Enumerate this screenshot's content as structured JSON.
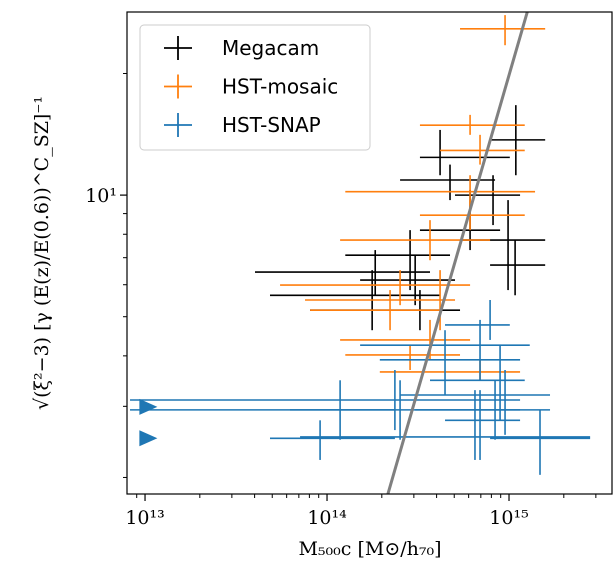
{
  "chart_data": {
    "type": "scatter",
    "x_label": "M₅₀₀c [M⊙/h₇₀]",
    "y_label": "√(ξ²−3) [γ (E(z)/E(0.6))^C_SZ]⁻¹",
    "log_x": true,
    "log_y": true,
    "xlim": [
      7960000000000.0,
      3680000000000000.0
    ],
    "ylim": [
      1.82,
      28.4
    ],
    "xticks": [
      {
        "value": 10000000000000.0,
        "label": "10¹³"
      },
      {
        "value": 100000000000000.0,
        "label": "10¹⁴"
      },
      {
        "value": 1000000000000000.0,
        "label": "10¹⁵"
      }
    ],
    "xticks_minor": [
      9000000000000.0,
      20000000000000.0,
      30000000000000.0,
      40000000000000.0,
      50000000000000.0,
      60000000000000.0,
      70000000000000.0,
      80000000000000.0,
      90000000000000.0,
      200000000000000.0,
      300000000000000.0,
      400000000000000.0,
      500000000000000.0,
      600000000000000.0,
      700000000000000.0,
      800000000000000.0,
      900000000000000.0,
      2000000000000000.0,
      3000000000000000.0
    ],
    "yticks": [
      {
        "value": 10,
        "label": "10¹"
      }
    ],
    "yticks_minor": [
      2,
      3,
      4,
      5,
      6,
      7,
      8,
      9,
      20
    ],
    "legend": "upper left",
    "series": [
      {
        "name": "Megacam",
        "color": "#000000",
        "x": [
          1090000000000000.0,
          817000000000000.0,
          988000000000000.0,
          1080000000000000.0,
          611000000000000.0,
          286000000000000.0,
          184000000000000.0,
          177000000000000.0,
          305000000000000.0,
          418000000000000.0,
          474000000000000.0,
          324000000000000.0
        ],
        "y": [
          13.7,
          10.0,
          7.74,
          6.71,
          8.19,
          7.1,
          6.45,
          5.65,
          6.16,
          12.4,
          10.9,
          5.19
        ],
        "x_low": [
          787000000000000.0,
          505000000000000.0,
          538000000000000.0,
          787000000000000.0,
          324000000000000.0,
          126000000000000.0,
          40200000000000.0,
          48600000000000.0,
          152000000000000.0,
          324000000000000.0,
          252000000000000.0,
          80700000000000.0
        ],
        "x_high": [
          1580000000000000.0,
          1150000000000000.0,
          1580000000000000.0,
          1580000000000000.0,
          893000000000000.0,
          474000000000000.0,
          368000000000000.0,
          418000000000000.0,
          505000000000000.0,
          1010000000000000.0,
          838000000000000.0,
          538000000000000.0
        ],
        "y_low": [
          11.2,
          8.43,
          5.82,
          5.65,
          7.31,
          5.82,
          5.65,
          4.63,
          5.34,
          11.2,
          9.72,
          4.63
        ],
        "y_high": [
          16.7,
          11.2,
          9.72,
          7.74,
          10.3,
          8.19,
          7.31,
          6.52,
          7.1,
          14.5,
          11.9,
          5.82
        ]
      },
      {
        "name": "HST-mosaic",
        "color": "#ff7f0e",
        "x": [
          951000000000000.0,
          611000000000000.0,
          693000000000000.0,
          611000000000000.0,
          368000000000000.0,
          611000000000000.0,
          252000000000000.0,
          418000000000000.0,
          222000000000000.0,
          286000000000000.0,
          693000000000000.0,
          368000000000000.0
        ],
        "y": [
          25.8,
          14.9,
          12.9,
          10.2,
          7.74,
          8.92,
          5.99,
          5.5,
          5.19,
          4.02,
          3.65,
          4.38
        ],
        "x_low": [
          538000000000000.0,
          324000000000000.0,
          418000000000000.0,
          126000000000000.0,
          118000000000000.0,
          324000000000000.0,
          55200000000000.0,
          75700000000000.0,
          80700000000000.0,
          126000000000000.0,
          195000000000000.0,
          118000000000000.0
        ],
        "x_high": [
          1580000000000000.0,
          1220000000000000.0,
          1220000000000000.0,
          1390000000000000.0,
          787000000000000.0,
          1220000000000000.0,
          611000000000000.0,
          505000000000000.0,
          418000000000000.0,
          538000000000000.0,
          1150000000000000.0,
          611000000000000.0
        ],
        "y_low": [
          23.5,
          14.1,
          11.9,
          9.18,
          6.9,
          8.19,
          5.34,
          4.63,
          4.63,
          3.69,
          3.48,
          3.91
        ],
        "y_high": [
          27.9,
          15.8,
          14.1,
          11.2,
          8.67,
          9.72,
          6.52,
          6.52,
          5.82,
          4.25,
          3.91,
          4.91
        ]
      },
      {
        "name": "HST-SNAP",
        "color": "#1f77b4",
        "x": [
          787000000000000.0,
          693000000000000.0,
          445000000000000.0,
          893000000000000.0,
          951000000000000.0,
          236000000000000.0,
          252000000000000.0,
          838000000000000.0,
          693000000000000.0,
          650000000000000.0,
          118000000000000.0,
          91600000000000.0,
          1480000000000000.0
        ],
        "y": [
          4.77,
          4.25,
          3.91,
          3.48,
          3.2,
          3.11,
          2.94,
          2.94,
          2.52,
          2.77,
          2.94,
          2.5,
          2.5
        ],
        "x_low": [
          445000000000000.0,
          152000000000000.0,
          195000000000000.0,
          368000000000000.0,
          252000000000000.0,
          8270000000000.0,
          8270000000000.0,
          305000000000000.0,
          71100000000000.0,
          445000000000000.0,
          62600000000000.0,
          48600000000000.0,
          787000000000000.0
        ],
        "x_high": [
          1010000000000000.0,
          1300000000000000.0,
          1150000000000000.0,
          1220000000000000.0,
          1680000000000000.0,
          1150000000000000.0,
          1150000000000000.0,
          1680000000000000.0,
          2790000000000000.0,
          1150000000000000.0,
          236000000000000.0,
          236000000000000.0,
          2790000000000000.0
        ],
        "y_low": [
          4.38,
          3.48,
          3.2,
          2.77,
          2.55,
          2.62,
          2.48,
          2.48,
          2.21,
          2.21,
          2.48,
          2.21,
          2.03
        ],
        "y_high": [
          5.5,
          4.91,
          4.63,
          4.25,
          3.69,
          3.69,
          3.48,
          3.48,
          3.29,
          3.29,
          3.48,
          2.77,
          2.94
        ],
        "limits": {
          "x": [
            10700000000000.0,
            10700000000000.0
          ],
          "y": [
            2.99,
            2.5
          ]
        }
      }
    ],
    "reference_line": {
      "color": "#808080",
      "x": [
        216000000000000.0,
        1260000000000000.0
      ],
      "y": [
        1.82,
        28.4
      ]
    }
  }
}
